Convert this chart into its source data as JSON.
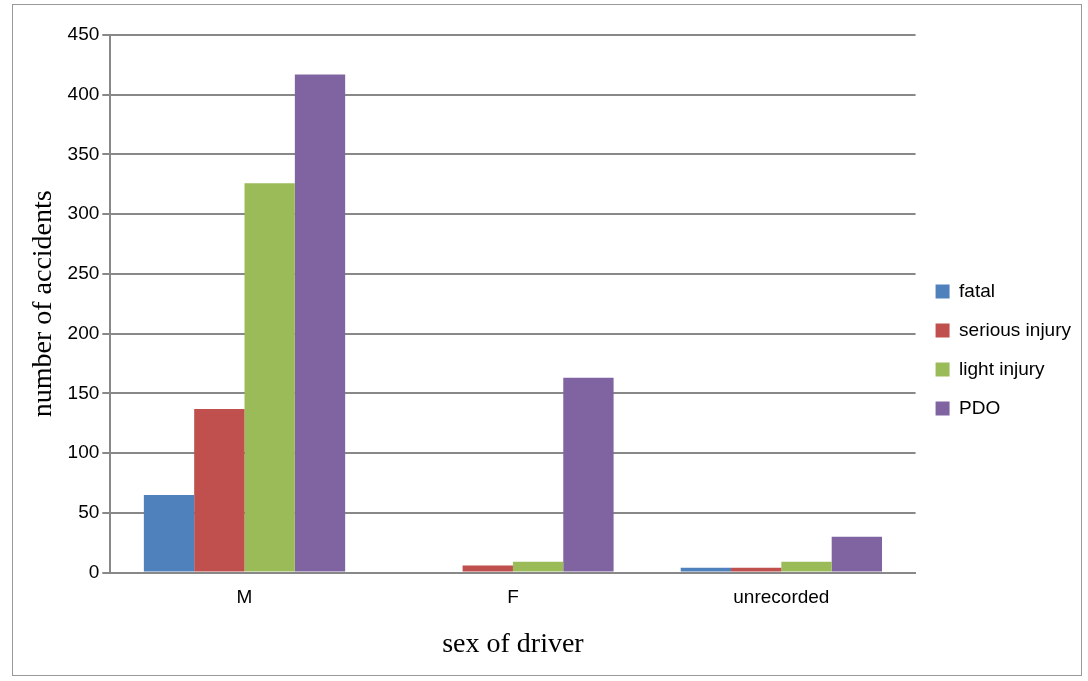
{
  "chart_data": {
    "type": "bar",
    "xlabel": "sex of driver",
    "ylabel": "number of accidents",
    "categories": [
      "M",
      "F",
      "unrecorded"
    ],
    "series": [
      {
        "name": "fatal",
        "color": "#4f81bd",
        "values": [
          65,
          1,
          4
        ]
      },
      {
        "name": "serious injury",
        "color": "#c0504d",
        "values": [
          137,
          6,
          4
        ]
      },
      {
        "name": "light injury",
        "color": "#9bbb59",
        "values": [
          326,
          9,
          9
        ]
      },
      {
        "name": "PDO",
        "color": "#8064a2",
        "values": [
          417,
          163,
          30
        ]
      }
    ],
    "ylim": [
      0,
      450
    ],
    "yticks": [
      0,
      50,
      100,
      150,
      200,
      250,
      300,
      350,
      400,
      450
    ],
    "grid": "y",
    "legend": "right"
  }
}
